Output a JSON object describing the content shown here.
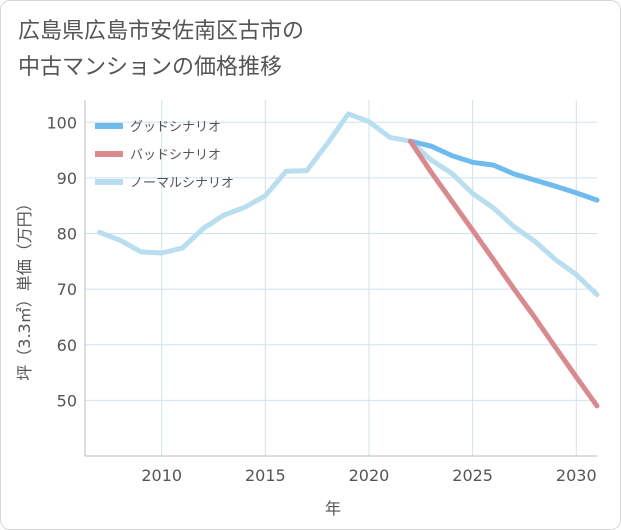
{
  "title_line1": "広島県広島市安佐南区古市の",
  "title_line2": "中古マンションの価格推移",
  "chart_data": {
    "type": "line",
    "xlabel": "年",
    "ylabel": "坪（3.3㎡）単価（万円）",
    "xlim": [
      2006.3,
      2031
    ],
    "ylim": [
      40,
      104
    ],
    "xticks": [
      2010,
      2015,
      2020,
      2025,
      2030
    ],
    "yticks": [
      50,
      60,
      70,
      80,
      90,
      100
    ],
    "grid": true,
    "legend_position": "top-left",
    "series": [
      {
        "name": "グッドシナリオ",
        "color": "#6fbbed",
        "x": [
          2022,
          2023,
          2024,
          2025,
          2026,
          2027,
          2028,
          2029,
          2030,
          2031
        ],
        "y": [
          96.6,
          95.7,
          94.0,
          92.8,
          92.3,
          90.7,
          89.6,
          88.5,
          87.3,
          86.0
        ]
      },
      {
        "name": "バッドシナリオ",
        "color": "#d98a8f",
        "x": [
          2022,
          2023,
          2024,
          2025,
          2026,
          2027,
          2028,
          2029,
          2030,
          2031
        ],
        "y": [
          96.6,
          91.0,
          85.8,
          80.6,
          75.3,
          70.0,
          64.9,
          59.5,
          54.2,
          49.0
        ]
      },
      {
        "name": "ノーマルシナリオ",
        "color": "#b8def0",
        "x": [
          2007,
          2008,
          2009,
          2010,
          2011,
          2012,
          2013,
          2014,
          2015,
          2016,
          2017,
          2018,
          2019,
          2020,
          2021,
          2022,
          2023,
          2024,
          2025,
          2026,
          2027,
          2028,
          2029,
          2030,
          2031
        ],
        "y": [
          80.2,
          78.8,
          76.7,
          76.5,
          77.4,
          80.9,
          83.3,
          84.7,
          86.8,
          91.2,
          91.3,
          96.2,
          101.5,
          100.1,
          97.3,
          96.6,
          93.2,
          90.8,
          87.2,
          84.6,
          81.2,
          78.6,
          75.3,
          72.6,
          69.0
        ]
      }
    ]
  }
}
